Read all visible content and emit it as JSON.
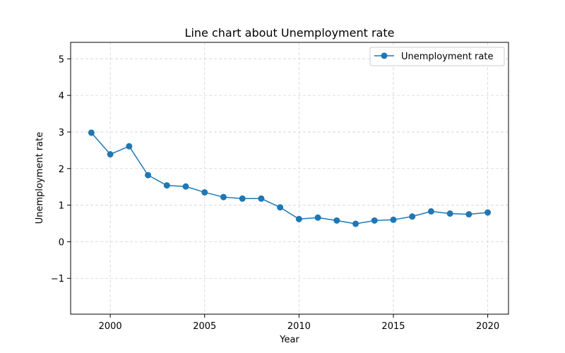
{
  "chart_data": {
    "type": "line",
    "title": "Line chart about Unemployment rate",
    "xlabel": "Year",
    "ylabel": "Unemployment rate",
    "x": [
      1999,
      2000,
      2001,
      2002,
      2003,
      2004,
      2005,
      2006,
      2007,
      2008,
      2009,
      2010,
      2011,
      2012,
      2013,
      2014,
      2015,
      2016,
      2017,
      2018,
      2019,
      2020
    ],
    "series": [
      {
        "name": "Unemployment rate",
        "color": "#1f77b4",
        "values": [
          2.98,
          2.39,
          2.61,
          1.82,
          1.54,
          1.51,
          1.35,
          1.22,
          1.18,
          1.18,
          0.94,
          0.62,
          0.66,
          0.58,
          0.49,
          0.58,
          0.6,
          0.69,
          0.83,
          0.77,
          0.75,
          0.8
        ]
      }
    ],
    "xlim": [
      1997.9,
      2021.1
    ],
    "ylim": [
      -1.98,
      5.45
    ],
    "xticks": [
      2000,
      2005,
      2010,
      2015,
      2020
    ],
    "yticks": [
      -1,
      0,
      1,
      2,
      3,
      4,
      5
    ],
    "ytick_labels": [
      "−1",
      "0",
      "1",
      "2",
      "3",
      "4",
      "5"
    ],
    "grid": true,
    "legend_position": "top-right"
  }
}
